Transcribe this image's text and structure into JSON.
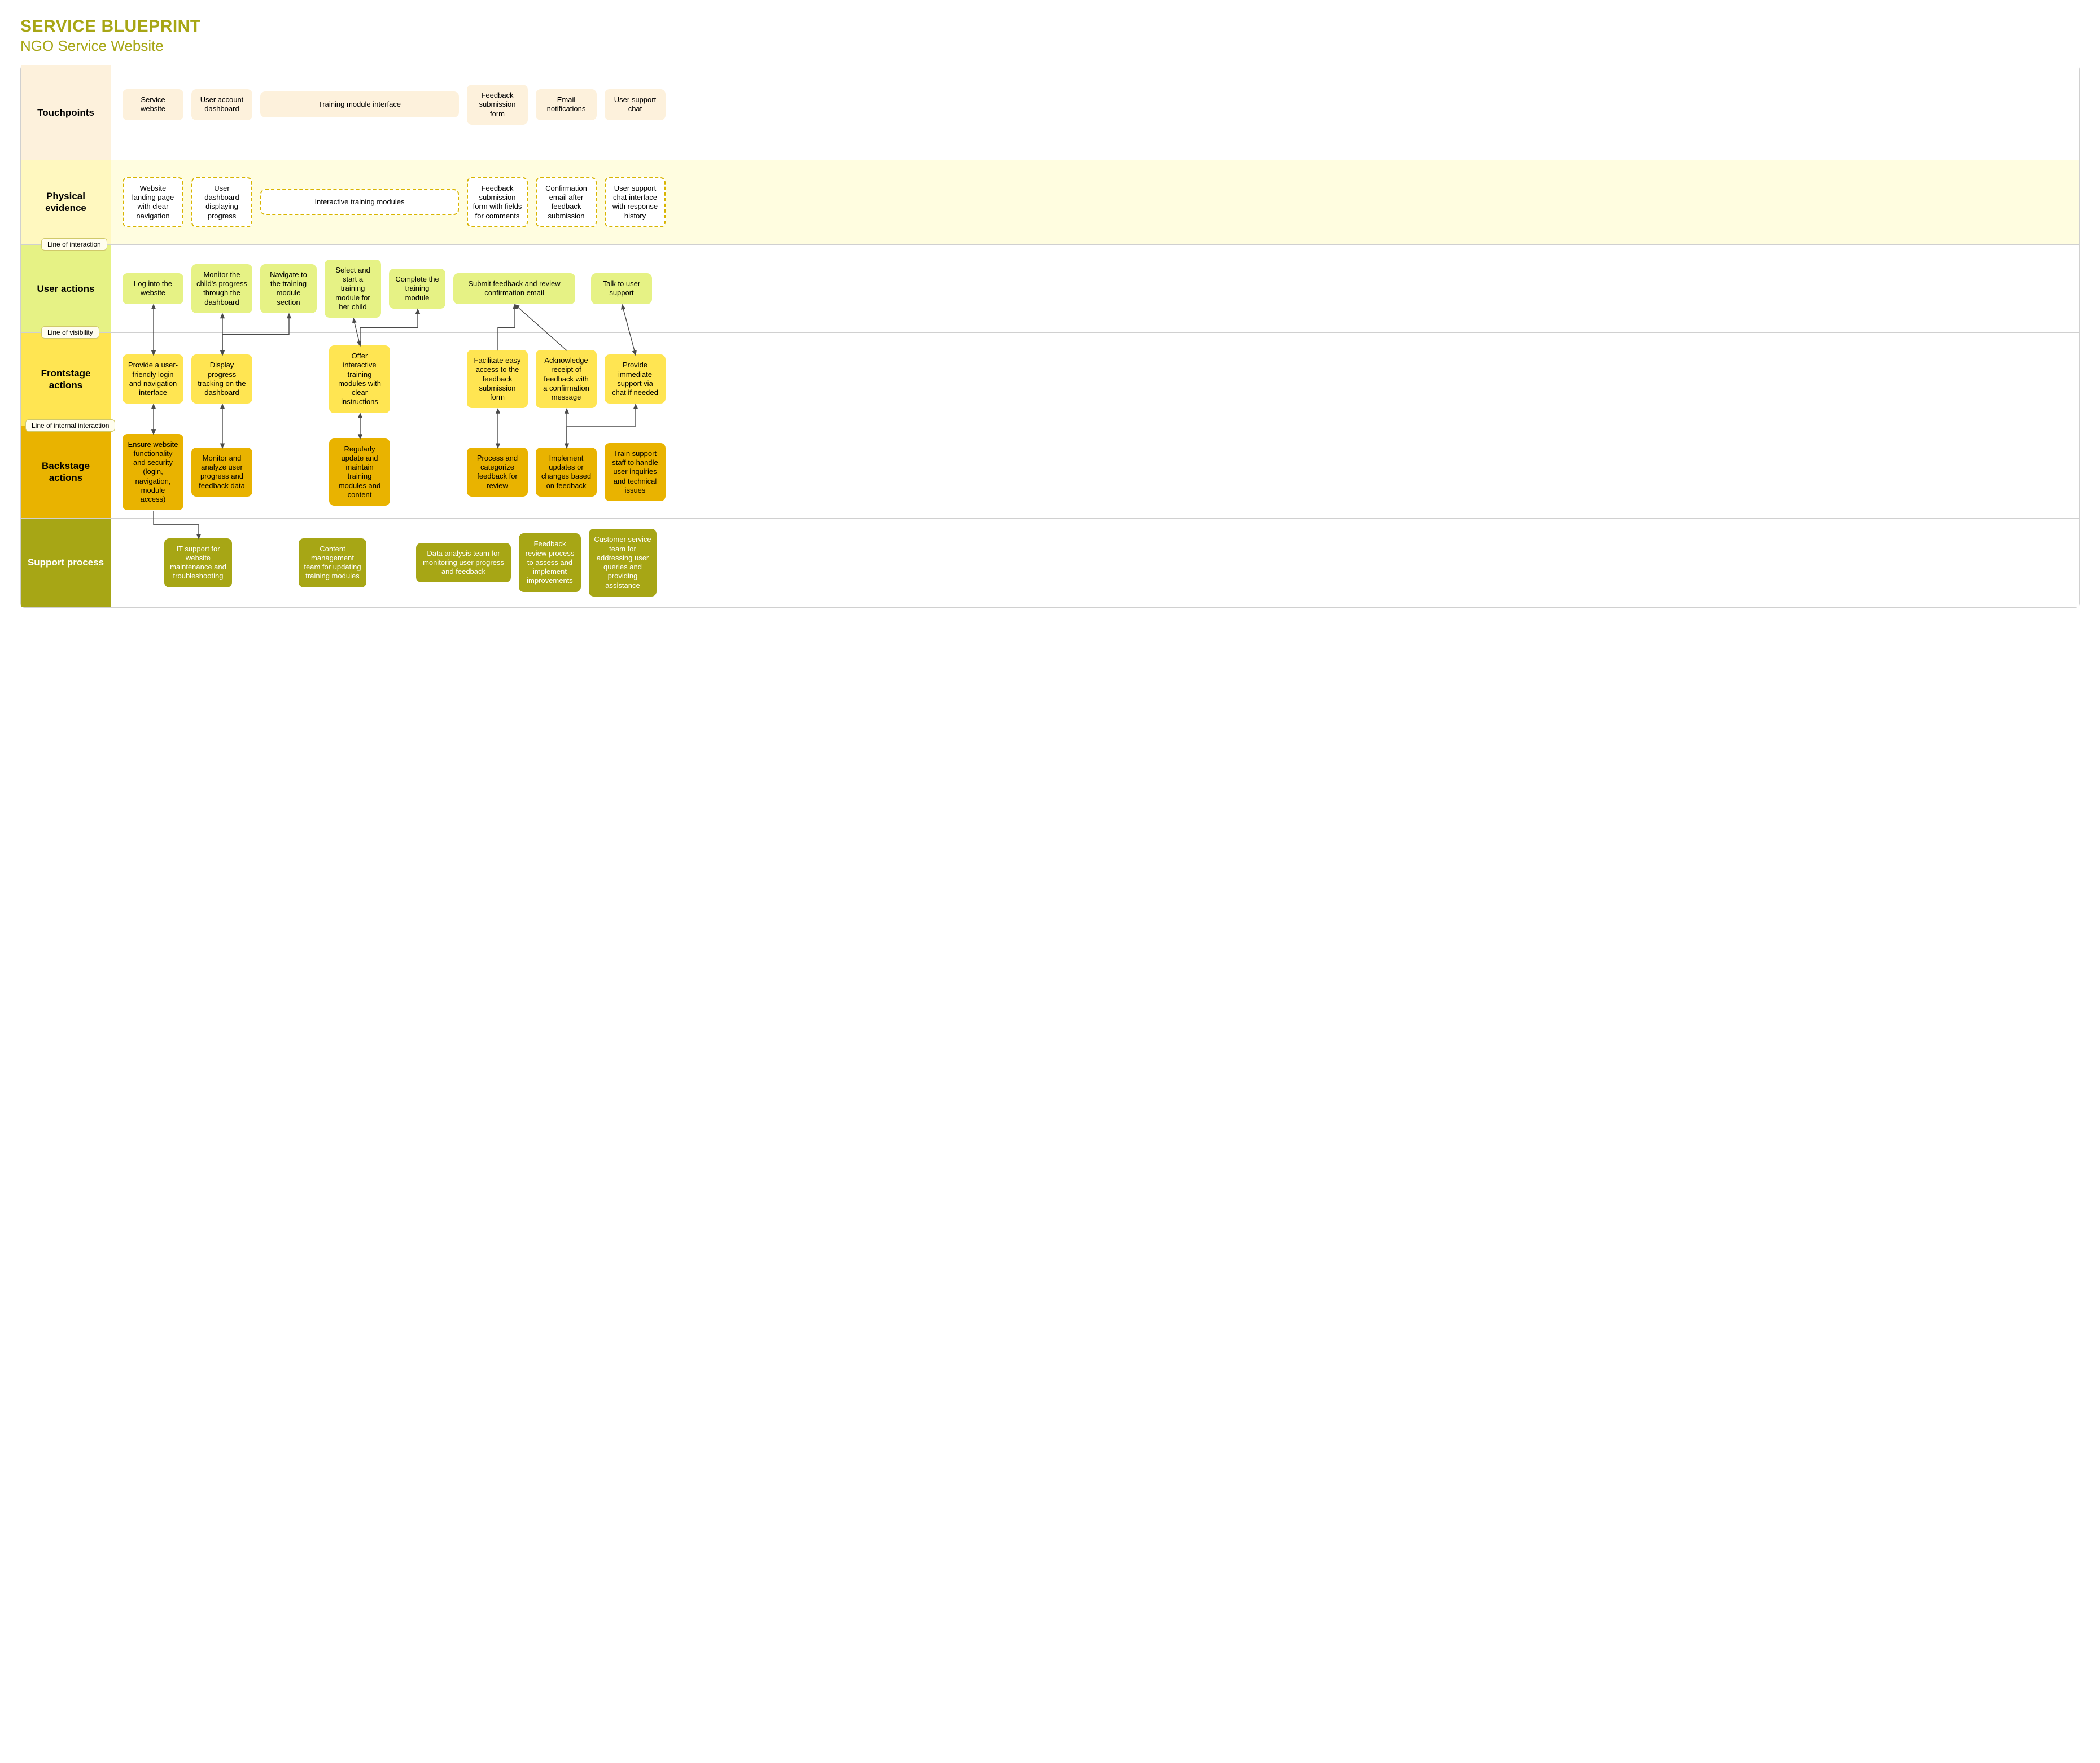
{
  "title": {
    "main": "SERVICE BLUEPRINT",
    "sub": "NGO Service Website",
    "main_color": "#a7a615",
    "sub_color": "#a7a615",
    "main_fontsize": 30,
    "sub_fontsize": 26
  },
  "lanes": {
    "touchpoints": {
      "label": "Touchpoints",
      "label_bg": "#fdf1dc",
      "content_bg": "#ffffff",
      "box_bg": "#fdf1dc",
      "items": [
        "Service website",
        "User account dashboard",
        "Training module interface",
        "Feedback submission form",
        "Email notifications",
        "User support chat"
      ]
    },
    "physical": {
      "label": "Physical evidence",
      "label_bg": "#fff8bf",
      "content_bg": "#fffde0",
      "box_border": "#d8b400",
      "items": [
        "Website landing page with clear navigation",
        "User dashboard displaying progress",
        "Interactive training modules",
        "Feedback submission form with fields for comments",
        "Confirmation email after feedback submission",
        "User support chat interface with response history"
      ],
      "line_badge": "Line of interaction"
    },
    "user": {
      "label": "User actions",
      "label_bg": "#e6f285",
      "content_bg": "#ffffff",
      "box_bg": "#e6f285",
      "items": [
        "Log into the website",
        "Monitor the child's progress through the dashboard",
        "Navigate to the training module section",
        "Select and start a training module for her child",
        "Complete the training module",
        "Submit feedback and review confirmation email",
        "Talk to user support"
      ],
      "line_badge": "Line of visibility"
    },
    "frontstage": {
      "label": "Frontstage actions",
      "label_bg": "#ffe552",
      "content_bg": "#ffffff",
      "box_bg": "#ffe552",
      "items": [
        "Provide a user-friendly login and navigation interface",
        "Display progress tracking on the dashboard",
        "Offer interactive training modules with clear instructions",
        "Facilitate easy access to the feedback submission form",
        "Acknowledge receipt of feedback with a confirmation message",
        "Provide immediate support via chat if needed"
      ],
      "line_badge": "Line of internal interaction"
    },
    "backstage": {
      "label": "Backstage actions",
      "label_bg": "#e9b300",
      "content_bg": "#ffffff",
      "box_bg": "#e9b300",
      "items": [
        "Ensure website functionality and security (login, navigation, module access)",
        "Monitor and analyze user progress and feedback data",
        "Regularly update and maintain training modules and content",
        "Process and categorize feedback for review",
        "Implement updates or changes based on feedback",
        "Train support staff to handle user inquiries and technical issues"
      ]
    },
    "support": {
      "label": "Support process",
      "label_bg": "#a7a615",
      "content_bg": "#ffffff",
      "box_bg": "#a7a615",
      "items": [
        "IT support for website maintenance and troubleshooting",
        "Content management team for updating training modules",
        "Data analysis team for monitoring user progress and feedback",
        "Feedback review process to assess and implement improvements",
        "Customer service team for addressing user queries and providing assistance"
      ]
    }
  },
  "styling": {
    "border_color": "#d0d0d0",
    "badge_bg": "#fffdee",
    "badge_border": "#d0c96a",
    "arrow_color": "#4a4a4a"
  },
  "arrows": [
    {
      "from": "user-0",
      "to": "front-0",
      "mode": "both"
    },
    {
      "from": "user-1",
      "to": "front-1",
      "mode": "both"
    },
    {
      "from": "front-1",
      "to": "user-2",
      "mode": "elbow-right"
    },
    {
      "from": "front-2",
      "to": "user-3",
      "mode": "both"
    },
    {
      "from": "front-2",
      "to": "user-4",
      "mode": "elbow-right"
    },
    {
      "from": "front-3",
      "to": "user-5",
      "mode": "elbow-to"
    },
    {
      "from": "front-4",
      "to": "user-5",
      "mode": "to"
    },
    {
      "from": "user-6",
      "to": "front-5",
      "mode": "both"
    },
    {
      "from": "front-0",
      "to": "back-0",
      "mode": "both"
    },
    {
      "from": "front-1",
      "to": "back-1",
      "mode": "both"
    },
    {
      "from": "front-2",
      "to": "back-2",
      "mode": "both"
    },
    {
      "from": "front-3",
      "to": "back-3",
      "mode": "both"
    },
    {
      "from": "front-4",
      "to": "back-4",
      "mode": "both"
    },
    {
      "from": "back-4",
      "to": "front-5",
      "mode": "elbow-right"
    },
    {
      "from": "back-0",
      "to": "support-0",
      "mode": "elbow-down"
    }
  ]
}
